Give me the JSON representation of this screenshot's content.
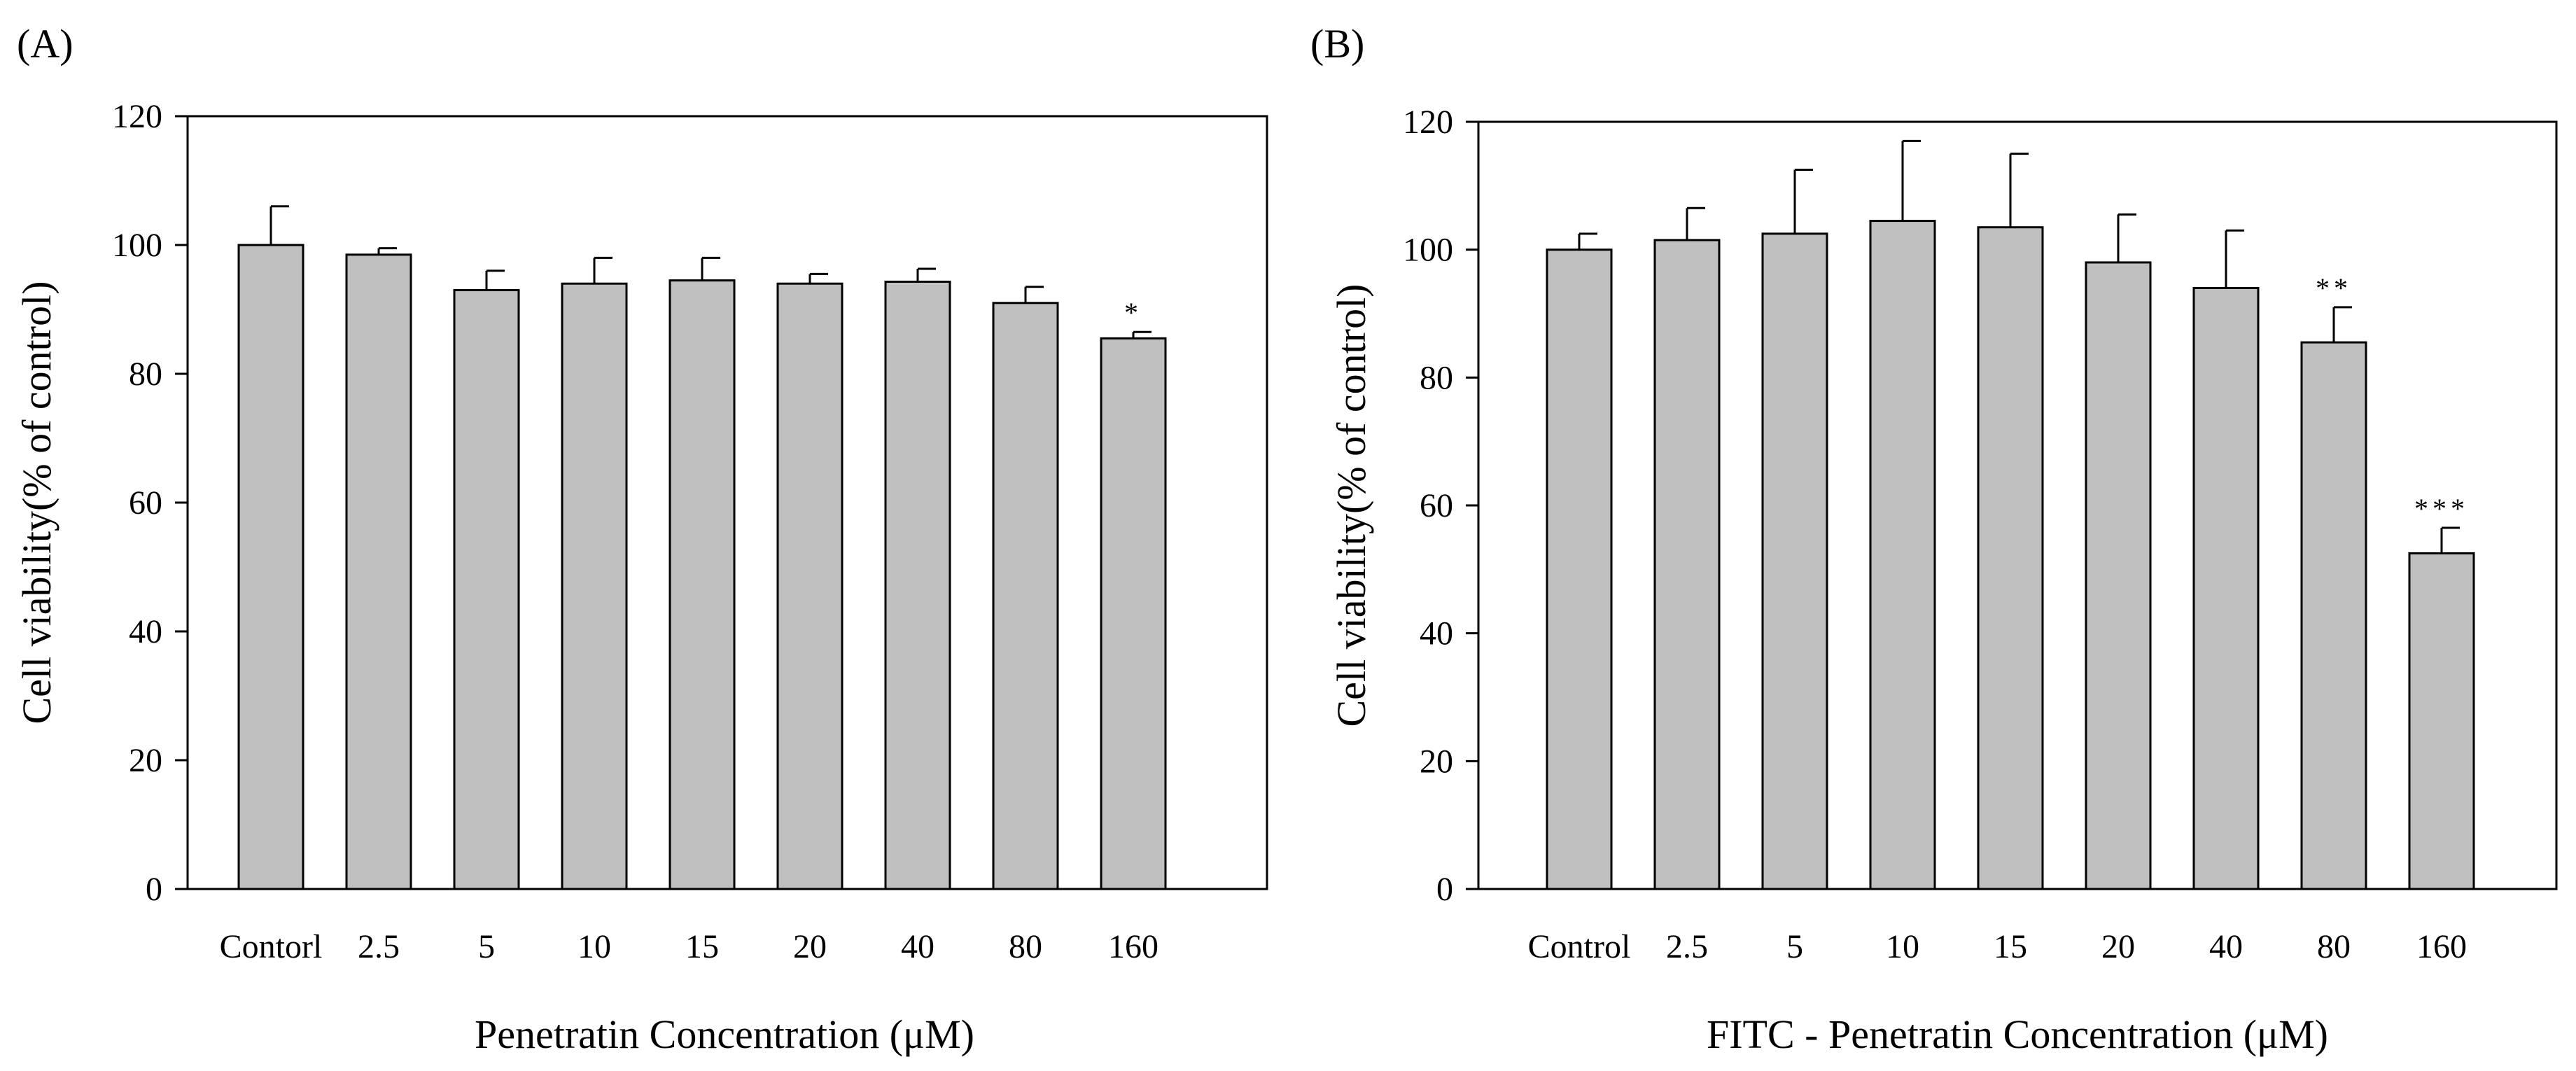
{
  "chart_data": [
    {
      "type": "bar",
      "panel_label": "(A)",
      "categories": [
        "Contorl",
        "2.5",
        "5",
        "10",
        "15",
        "20",
        "40",
        "80",
        "160"
      ],
      "values": [
        100,
        98.5,
        93,
        94,
        94.5,
        94,
        94.3,
        91,
        85.5
      ],
      "errors": [
        6,
        1,
        3,
        4,
        3.5,
        1.5,
        2,
        2.5,
        1
      ],
      "significance": [
        "",
        "",
        "",
        "",
        "",
        "",
        "",
        "",
        "*"
      ],
      "xlabel": "Penetratin Concentration (μM)",
      "ylabel": "Cell viability(% of control)",
      "ylim": [
        0,
        120
      ],
      "yticks": [
        "0",
        "20",
        "40",
        "60",
        "80",
        "100",
        "120"
      ],
      "bar_color": "#c0c0c0"
    },
    {
      "type": "bar",
      "panel_label": "(B)",
      "categories": [
        "Control",
        "2.5",
        "5",
        "10",
        "15",
        "20",
        "40",
        "80",
        "160"
      ],
      "values": [
        100,
        101.5,
        102.5,
        104.5,
        103.5,
        98,
        94,
        85.5,
        52.5
      ],
      "errors": [
        2.5,
        5,
        10,
        12.5,
        11.5,
        7.5,
        9,
        5.5,
        4
      ],
      "significance": [
        "",
        "",
        "",
        "",
        "",
        "",
        "",
        "**",
        "***"
      ],
      "xlabel": "FITC - Penetratin Concentration (μM)",
      "ylabel": "Cell viability(% of control)",
      "ylim": [
        0,
        120
      ],
      "yticks": [
        "0",
        "20",
        "40",
        "60",
        "80",
        "100",
        "120"
      ],
      "bar_color": "#c0c0c0"
    }
  ]
}
